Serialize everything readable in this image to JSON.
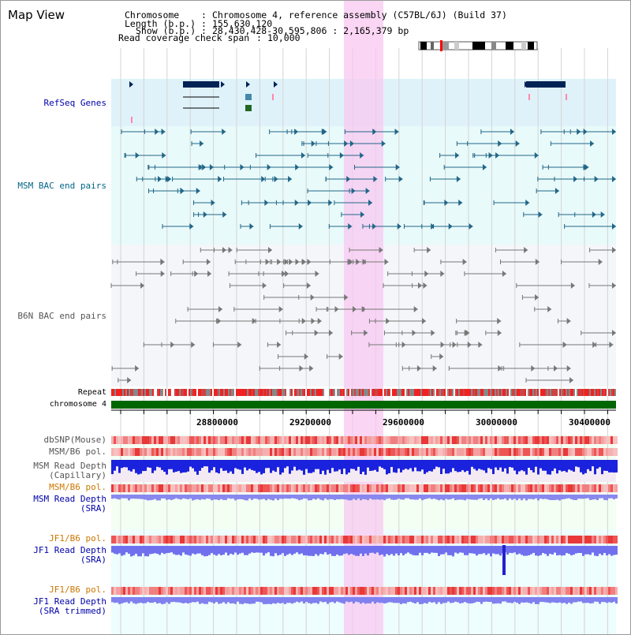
{
  "title": "Map View",
  "info": {
    "chromosome_label": "Chromosome",
    "chromosome_value": "Chromosome 4, reference assembly (C57BL/6J) (Build 37)",
    "length_label": "Length (b.p.)",
    "length_value": "155,630,120",
    "show_label": "Show (b.p.)",
    "show_value": "28,430,428-30,595,806 : 2,165,379 bp",
    "coverage_label": "Read coverage check span",
    "coverage_value": "10,000"
  },
  "tracks": {
    "refseq": "RefSeq Genes",
    "msm_bac": "MSM BAC end pairs",
    "b6n_bac": "B6N BAC end pairs",
    "repeat": "Repeat",
    "chromosome": "chromosome 4",
    "dbsnp": "dbSNP(Mouse)",
    "msm_b6_pol_1": "MSM/B6 pol.",
    "msm_read_depth_cap": "MSM Read Depth\n(Capillary)",
    "msm_b6_pol_2": "MSM/B6 pol.",
    "msm_read_depth_sra": "MSM Read Depth\n(SRA)",
    "jf1_b6_pol_1": "JF1/B6 pol.",
    "jf1_read_depth_sra": "JF1 Read Depth\n(SRA)",
    "jf1_b6_pol_2": "JF1/B6 pol.",
    "jf1_read_depth_trim": "JF1 Read Depth\n(SRA trimmed)"
  },
  "axis": {
    "ticks": [
      "28800000",
      "29200000",
      "29600000",
      "30000000",
      "30400000"
    ]
  },
  "colors": {
    "refseq_label": "#0000aa",
    "msm_label": "#006688",
    "b6n_label": "#555555",
    "msm_pol_label": "#cc7700",
    "sra_label": "#0000aa",
    "highlight": "#f8c8f0",
    "gene_dark": "#002255",
    "chromosome_bar": "#006600"
  }
}
